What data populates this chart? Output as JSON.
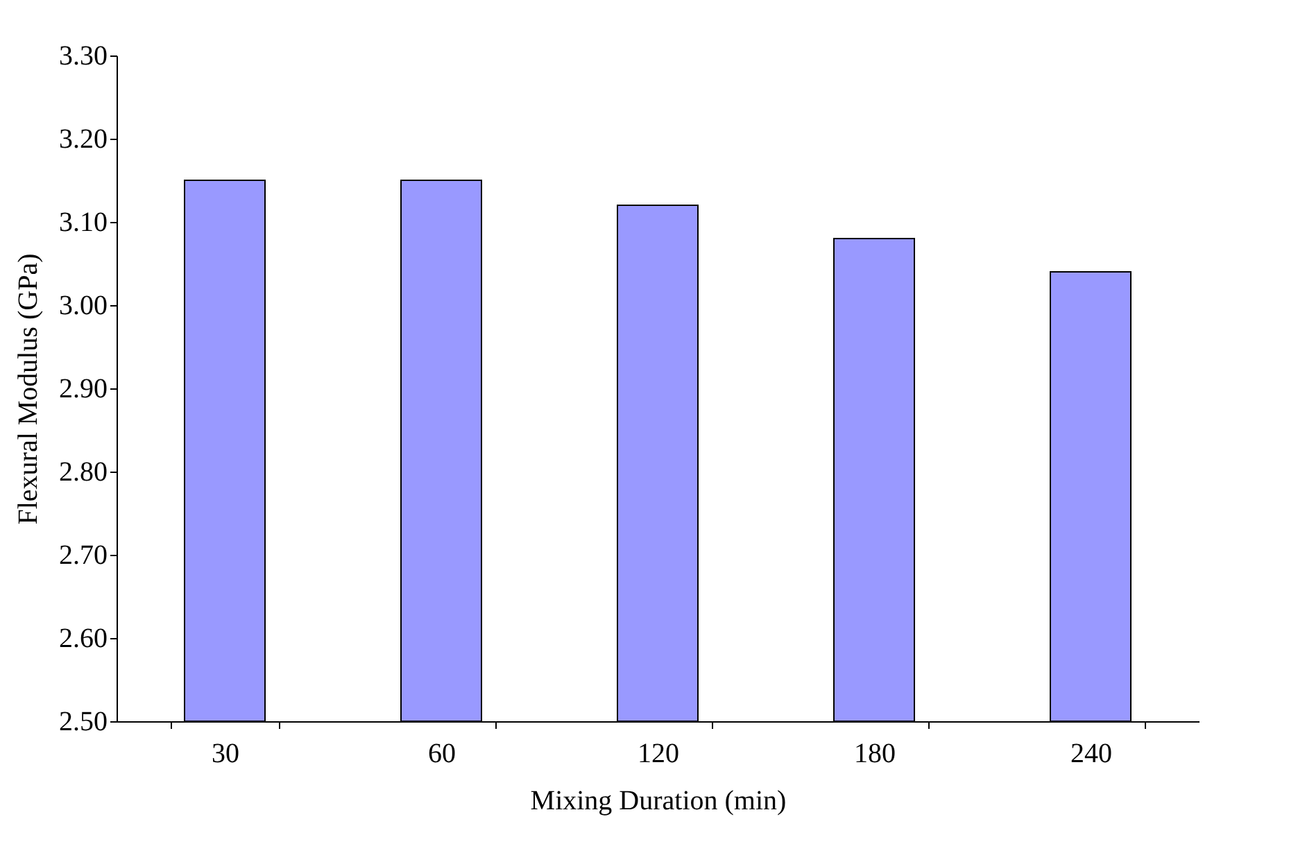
{
  "chart_data": {
    "type": "bar",
    "xlabel": "Mixing Duration (min)",
    "ylabel": "Flexural Modulus (GPa)",
    "categories": [
      "30",
      "60",
      "120",
      "180",
      "240"
    ],
    "values": [
      3.15,
      3.15,
      3.12,
      3.08,
      3.04
    ],
    "color": "#9999ff",
    "ylim": [
      2.5,
      3.3
    ],
    "yticks": [
      {
        "value": 2.5,
        "label": "2.50"
      },
      {
        "value": 2.6,
        "label": "2.60"
      },
      {
        "value": 2.7,
        "label": "2.70"
      },
      {
        "value": 2.8,
        "label": "2.80"
      },
      {
        "value": 2.9,
        "label": "2.90"
      },
      {
        "value": 3.0,
        "label": "3.00"
      },
      {
        "value": 3.1,
        "label": "3.10"
      },
      {
        "value": 3.2,
        "label": "3.20"
      },
      {
        "value": 3.3,
        "label": "3.30"
      }
    ],
    "grid": false
  }
}
